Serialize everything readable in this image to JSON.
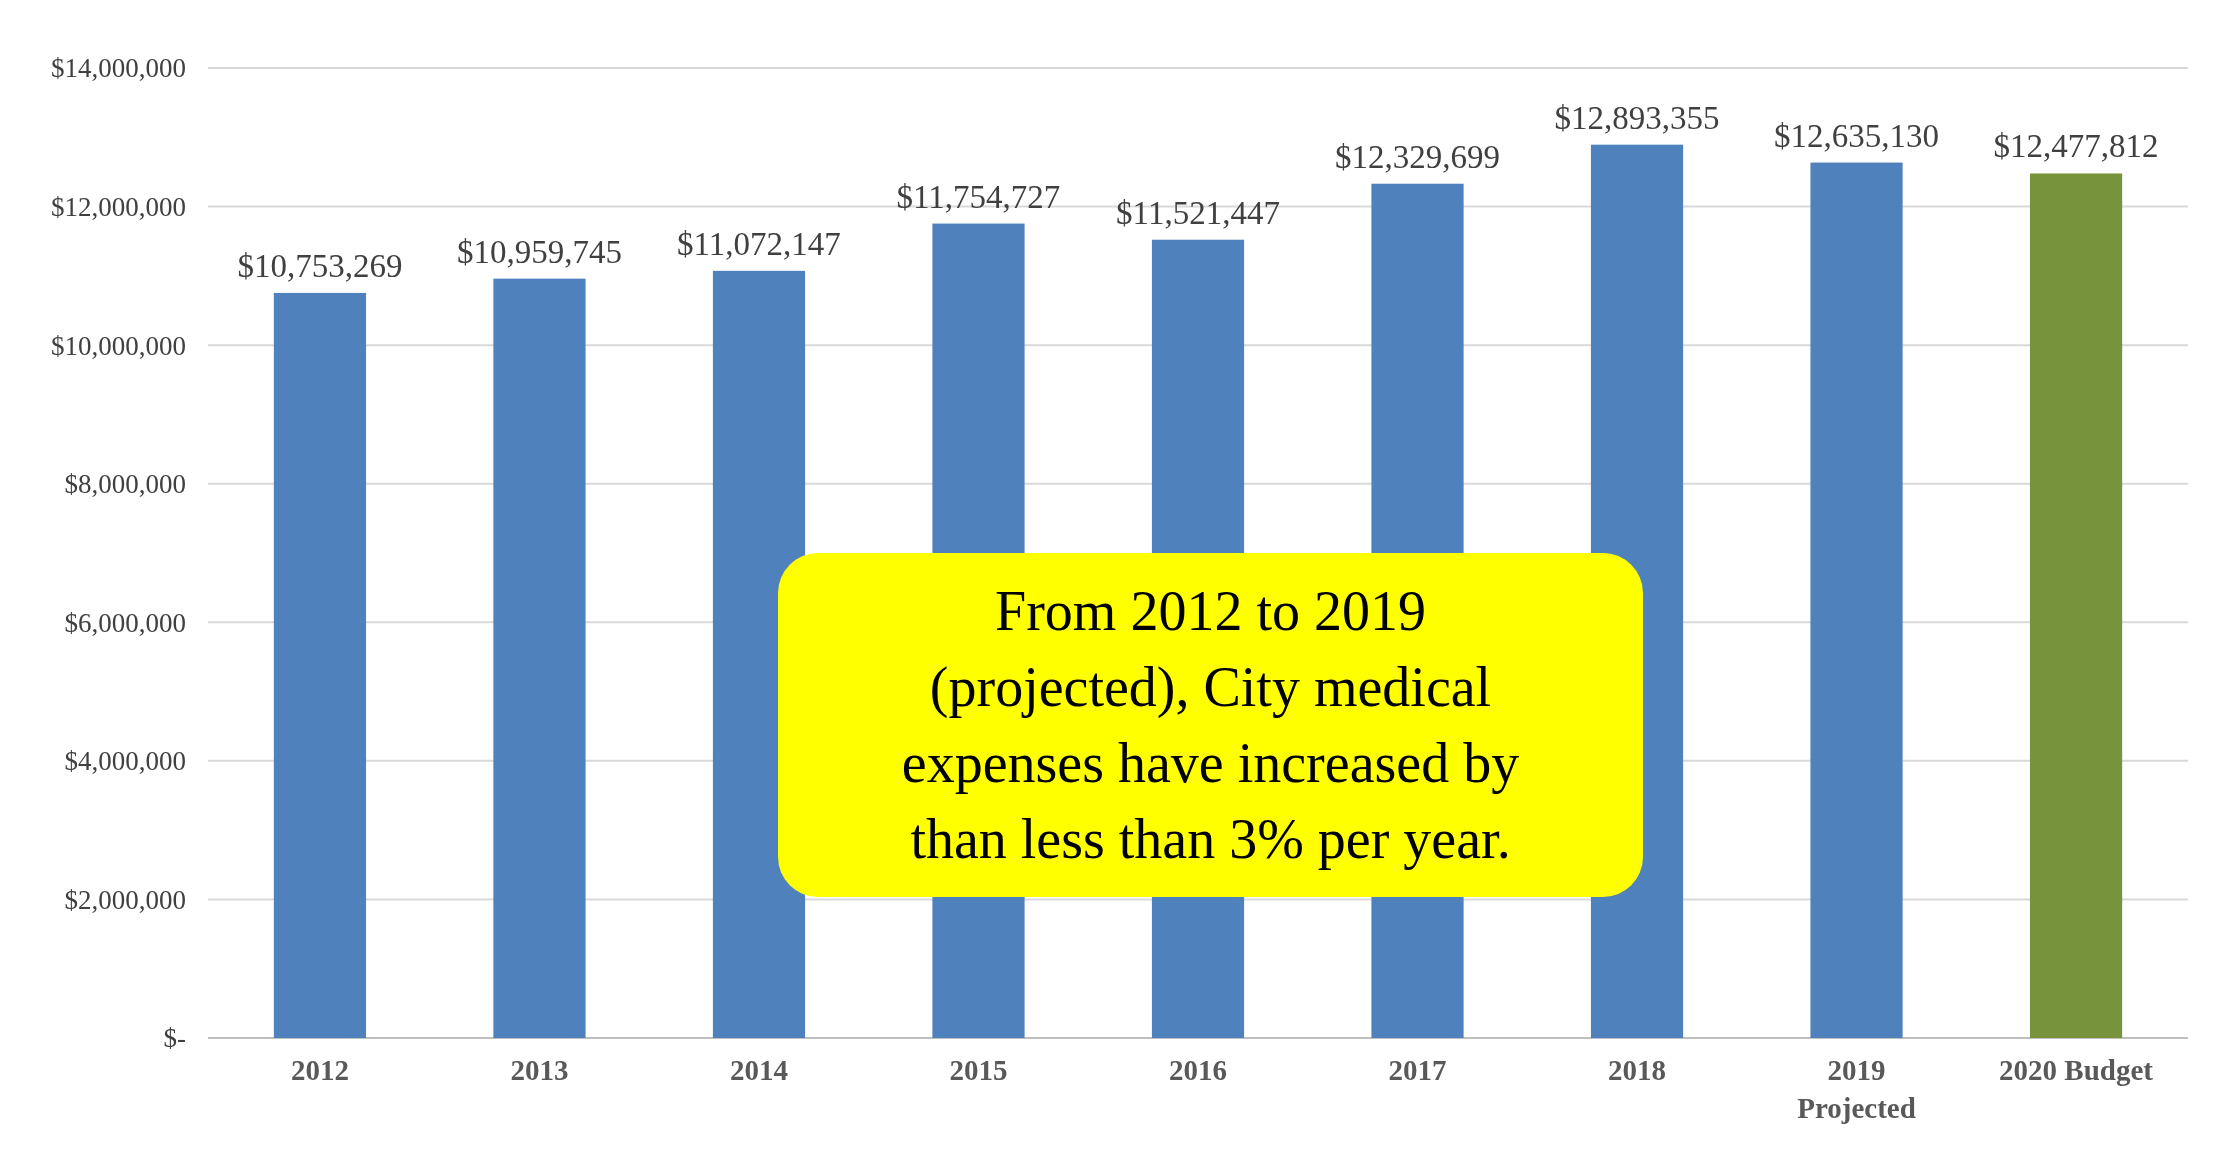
{
  "chart_data": {
    "type": "bar",
    "categories": [
      "2012",
      "2013",
      "2014",
      "2015",
      "2016",
      "2017",
      "2018",
      "2019\nProjected",
      "2020 Budget"
    ],
    "values": [
      10753269,
      10959745,
      11072147,
      11754727,
      11521447,
      12329699,
      12893355,
      12635130,
      12477812
    ],
    "colors": [
      "#4f81bd",
      "#4f81bd",
      "#4f81bd",
      "#4f81bd",
      "#4f81bd",
      "#4f81bd",
      "#4f81bd",
      "#4f81bd",
      "#77933c"
    ],
    "value_labels": [
      "$10,753,269",
      "$10,959,745",
      "$11,072,147",
      "$11,754,727",
      "$11,521,447",
      "$12,329,699",
      "$12,893,355",
      "$12,635,130",
      "$12,477,812"
    ],
    "ylim": [
      0,
      14000000
    ],
    "yticks": [
      {
        "value": 0,
        "label": "$-"
      },
      {
        "value": 2000000,
        "label": "$2,000,000"
      },
      {
        "value": 4000000,
        "label": "$4,000,000"
      },
      {
        "value": 6000000,
        "label": "$6,000,000"
      },
      {
        "value": 8000000,
        "label": "$8,000,000"
      },
      {
        "value": 10000000,
        "label": "$10,000,000"
      },
      {
        "value": 12000000,
        "label": "$12,000,000"
      },
      {
        "value": 14000000,
        "label": "$14,000,000"
      }
    ],
    "grid": "y",
    "annotations": [
      "From 2012 to 2019 (projected), City medical expenses have increased by than less than 3% per year."
    ]
  }
}
